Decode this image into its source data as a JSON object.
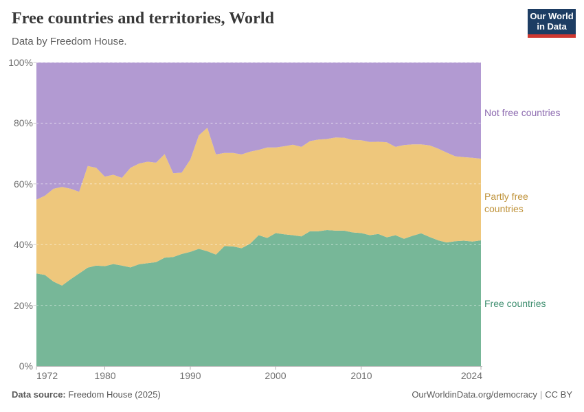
{
  "header": {
    "title": "Free countries and territories, World",
    "subtitle": "Data by Freedom House."
  },
  "logo": {
    "line1": "Our World",
    "line2": "in Data"
  },
  "colors": {
    "logo_bg": "#1d3d63",
    "logo_bar": "#cf3830",
    "axis": "#b0b0b0",
    "gridline": "#ffffff"
  },
  "chart_data": {
    "type": "area",
    "stacked": true,
    "unit": "%",
    "title": "Free countries and territories, World",
    "xlabel": "",
    "ylabel": "",
    "grid": true,
    "legend_position": "right-edge-labels",
    "xlim": [
      1972,
      2024
    ],
    "ylim": [
      0,
      100
    ],
    "x": [
      1972,
      1973,
      1974,
      1975,
      1976,
      1977,
      1978,
      1979,
      1980,
      1981,
      1982,
      1983,
      1984,
      1985,
      1986,
      1987,
      1988,
      1989,
      1990,
      1991,
      1992,
      1993,
      1994,
      1995,
      1996,
      1997,
      1998,
      1999,
      2000,
      2001,
      2002,
      2003,
      2004,
      2005,
      2006,
      2007,
      2008,
      2009,
      2010,
      2011,
      2012,
      2013,
      2014,
      2015,
      2016,
      2017,
      2018,
      2019,
      2020,
      2021,
      2022,
      2023,
      2024
    ],
    "series": [
      {
        "name": "Free countries",
        "fill": "#77b798",
        "label_color": "#3f8f70",
        "values": [
          30.5,
          30.0,
          27.8,
          26.5,
          28.6,
          30.5,
          32.4,
          33.1,
          32.9,
          33.6,
          33.1,
          32.5,
          33.5,
          33.9,
          34.2,
          35.7,
          35.9,
          36.9,
          37.6,
          38.6,
          37.8,
          36.7,
          39.5,
          39.4,
          38.8,
          40.3,
          43.1,
          42.2,
          43.8,
          43.4,
          43.1,
          42.7,
          44.4,
          44.4,
          44.8,
          44.6,
          44.6,
          44.0,
          43.8,
          43.1,
          43.5,
          42.4,
          43.1,
          41.9,
          42.9,
          43.7,
          42.5,
          41.4,
          40.7,
          41.1,
          41.3,
          41.0,
          41.4
        ]
      },
      {
        "name": "Partly free countries",
        "fill": "#eec77c",
        "label_color": "#bf9239",
        "values": [
          24.3,
          26.1,
          30.6,
          32.5,
          29.8,
          26.9,
          33.5,
          32.2,
          29.5,
          29.4,
          28.9,
          32.8,
          33.2,
          33.4,
          32.8,
          34.1,
          27.6,
          26.8,
          30.4,
          37.4,
          40.7,
          33.0,
          30.7,
          30.8,
          30.9,
          30.3,
          28.1,
          29.8,
          28.2,
          29.0,
          29.8,
          29.5,
          29.7,
          30.2,
          30.0,
          30.7,
          30.6,
          30.5,
          30.6,
          30.7,
          30.4,
          31.3,
          29.1,
          30.9,
          30.1,
          29.3,
          30.2,
          30.2,
          29.6,
          28.0,
          27.5,
          27.6,
          26.9
        ]
      },
      {
        "name": "Not free countries",
        "fill": "#b29ad2",
        "label_color": "#8d6bb0",
        "values": [
          45.2,
          43.9,
          41.6,
          41.0,
          41.6,
          42.6,
          34.1,
          34.7,
          37.6,
          37.0,
          38.0,
          34.7,
          33.3,
          32.7,
          33.0,
          30.2,
          36.5,
          36.3,
          32.0,
          24.0,
          21.5,
          30.3,
          29.8,
          29.8,
          30.3,
          29.4,
          28.8,
          28.0,
          28.0,
          27.6,
          27.1,
          27.8,
          25.9,
          25.4,
          25.2,
          24.7,
          24.8,
          25.5,
          25.6,
          26.2,
          26.1,
          26.3,
          27.8,
          27.2,
          27.0,
          27.0,
          27.3,
          28.4,
          29.7,
          30.9,
          31.2,
          31.4,
          31.7
        ]
      }
    ],
    "y_ticks": [
      {
        "value": 100,
        "label": "100%"
      },
      {
        "value": 80,
        "label": "80%"
      },
      {
        "value": 60,
        "label": "60%"
      },
      {
        "value": 40,
        "label": "40%"
      },
      {
        "value": 20,
        "label": "20%"
      },
      {
        "value": 0,
        "label": "0%"
      }
    ],
    "x_ticks": [
      {
        "value": 1972,
        "label": "1972"
      },
      {
        "value": 1980,
        "label": "1980"
      },
      {
        "value": 1990,
        "label": "1990"
      },
      {
        "value": 2000,
        "label": "2000"
      },
      {
        "value": 2010,
        "label": "2010"
      },
      {
        "value": 2024,
        "label": "2024"
      }
    ]
  },
  "footer": {
    "source_label": "Data source:",
    "source_value": "Freedom House (2025)",
    "url": "OurWorldinData.org/democracy",
    "separator": "|",
    "license": "CC BY"
  }
}
